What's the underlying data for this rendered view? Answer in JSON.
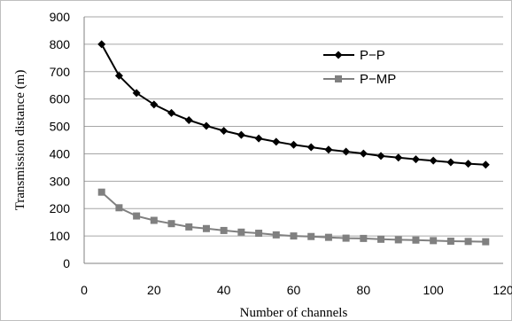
{
  "chart_data": {
    "type": "line",
    "xlabel": "Number of channels",
    "ylabel": "Transmission distance (m)",
    "xlim": [
      0,
      120
    ],
    "ylim": [
      0,
      900
    ],
    "x_ticks": [
      0,
      20,
      40,
      60,
      80,
      100,
      120
    ],
    "y_ticks": [
      0,
      100,
      200,
      300,
      400,
      500,
      600,
      700,
      800,
      900
    ],
    "grid": "horizontal",
    "legend": "top-right",
    "series": [
      {
        "name": "P−P",
        "marker": "diamond",
        "color": "#000000",
        "x": [
          5,
          10,
          15,
          20,
          25,
          30,
          35,
          40,
          45,
          50,
          55,
          60,
          65,
          70,
          75,
          80,
          85,
          90,
          95,
          100,
          105,
          110,
          115
        ],
        "y": [
          800,
          685,
          622,
          580,
          549,
          523,
          502,
          484,
          469,
          456,
          444,
          433,
          424,
          415,
          408,
          401,
          392,
          386,
          380,
          375,
          369,
          364,
          360
        ]
      },
      {
        "name": "P−MP",
        "marker": "square",
        "color": "#808080",
        "x": [
          5,
          10,
          15,
          20,
          25,
          30,
          35,
          40,
          45,
          50,
          55,
          60,
          65,
          70,
          75,
          80,
          85,
          90,
          95,
          100,
          105,
          110,
          115
        ],
        "y": [
          260,
          203,
          173,
          157,
          145,
          133,
          127,
          120,
          114,
          110,
          104,
          100,
          98,
          95,
          92,
          91,
          88,
          86,
          85,
          83,
          81,
          80,
          79
        ]
      }
    ]
  }
}
